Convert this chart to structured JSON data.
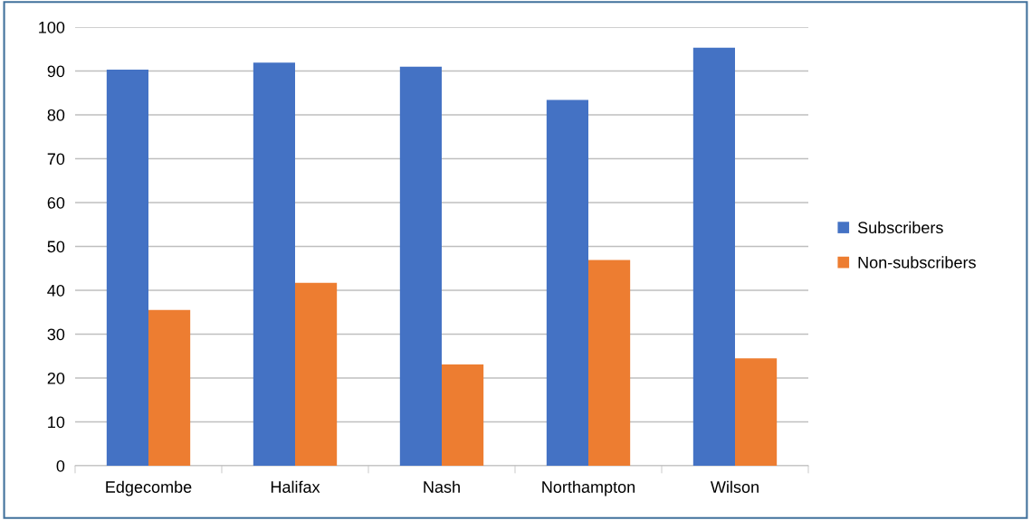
{
  "chart_data": {
    "type": "bar",
    "categories": [
      "Edgecombe",
      "Halifax",
      "Nash",
      "Northampton",
      "Wilson"
    ],
    "series": [
      {
        "name": "Subscribers",
        "color": "#4472c4",
        "values": [
          90.3,
          91.9,
          91.0,
          83.4,
          95.3
        ]
      },
      {
        "name": "Non-subscribers",
        "color": "#ed7d31",
        "values": [
          35.5,
          41.7,
          23.1,
          46.9,
          24.5
        ]
      }
    ],
    "ylim": [
      0,
      100
    ],
    "yticks": [
      0,
      10,
      20,
      30,
      40,
      50,
      60,
      70,
      80,
      90,
      100
    ],
    "grid": "y",
    "legend": "right"
  }
}
